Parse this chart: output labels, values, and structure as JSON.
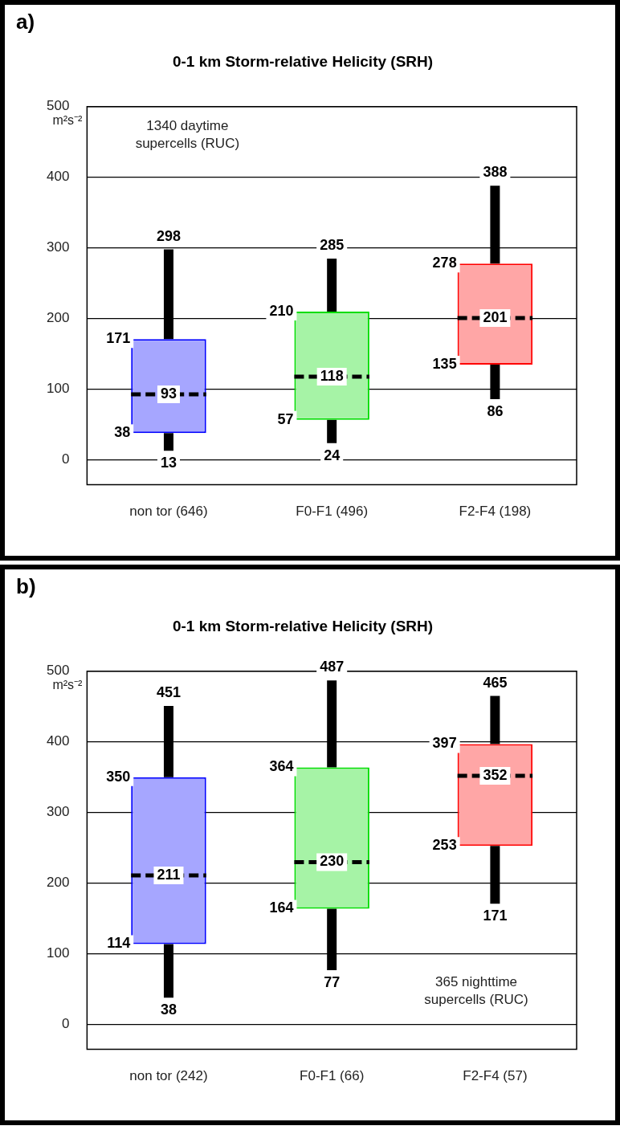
{
  "chart_data": [
    {
      "type": "box",
      "title": "0-1 km Storm-relative Helicity (SRH)",
      "ylabel": "m²s⁻²",
      "categories": [
        "non tor (646)",
        "F0-F1 (496)",
        "F2-F4 (198)"
      ],
      "colors": [
        "#0000ff",
        "#00dd00",
        "#ff0000"
      ],
      "boxes": [
        {
          "low": 13,
          "q1": 38,
          "median": 93,
          "q3": 171,
          "high": 298
        },
        {
          "low": 24,
          "q1": 57,
          "median": 118,
          "q3": 210,
          "high": 285
        },
        {
          "low": 86,
          "q1": 135,
          "median": 201,
          "q3": 278,
          "high": 388
        }
      ],
      "ylim": [
        -35,
        500
      ],
      "yticks": [
        0,
        100,
        200,
        300,
        400,
        500
      ],
      "grid": "y",
      "legend": false,
      "annotations": [
        "a)",
        "1340 daytime\nsupercells (RUC)",
        {
          "text": "298",
          "x": "non tor (646)",
          "y": 298
        },
        {
          "text": "171",
          "x": "non tor (646)",
          "y": 171
        },
        {
          "text": "93",
          "x": "non tor (646)",
          "y": 93
        },
        {
          "text": "38",
          "x": "non tor (646)",
          "y": 38
        },
        {
          "text": "13",
          "x": "non tor (646)",
          "y": 13
        },
        {
          "text": "285",
          "x": "F0-F1 (496)",
          "y": 285
        },
        {
          "text": "210",
          "x": "F0-F1 (496)",
          "y": 210
        },
        {
          "text": "118",
          "x": "F0-F1 (496)",
          "y": 118
        },
        {
          "text": "57",
          "x": "F0-F1 (496)",
          "y": 57
        },
        {
          "text": "24",
          "x": "F0-F1 (496)",
          "y": 24
        },
        {
          "text": "388",
          "x": "F2-F4 (198)",
          "y": 388
        },
        {
          "text": "278",
          "x": "F2-F4 (198)",
          "y": 278
        },
        {
          "text": "201",
          "x": "F2-F4 (198)",
          "y": 201
        },
        {
          "text": "135",
          "x": "F2-F4 (198)",
          "y": 135
        },
        {
          "text": "86",
          "x": "F2-F4 (198)",
          "y": 86
        }
      ]
    },
    {
      "type": "box",
      "title": "0-1 km Storm-relative Helicity (SRH)",
      "ylabel": "m²s⁻²",
      "categories": [
        "non tor (242)",
        "F0-F1 (66)",
        "F2-F4 (57)"
      ],
      "colors": [
        "#0000ff",
        "#00dd00",
        "#ff0000"
      ],
      "boxes": [
        {
          "low": 38,
          "q1": 114,
          "median": 211,
          "q3": 350,
          "high": 451
        },
        {
          "low": 77,
          "q1": 164,
          "median": 230,
          "q3": 364,
          "high": 487
        },
        {
          "low": 171,
          "q1": 253,
          "median": 352,
          "q3": 397,
          "high": 465
        }
      ],
      "ylim": [
        -35,
        500
      ],
      "yticks": [
        0,
        100,
        200,
        300,
        400,
        500
      ],
      "grid": "y",
      "legend": false,
      "annotations": [
        "b)",
        "365 nighttime\nsupercells (RUC)",
        {
          "text": "451",
          "x": "non tor (242)",
          "y": 451
        },
        {
          "text": "350",
          "x": "non tor (242)",
          "y": 350
        },
        {
          "text": "211",
          "x": "non tor (242)",
          "y": 211
        },
        {
          "text": "114",
          "x": "non tor (242)",
          "y": 114
        },
        {
          "text": "38",
          "x": "non tor (242)",
          "y": 38
        },
        {
          "text": "487",
          "x": "F0-F1 (66)",
          "y": 487
        },
        {
          "text": "364",
          "x": "F0-F1 (66)",
          "y": 364
        },
        {
          "text": "230",
          "x": "F0-F1 (66)",
          "y": 230
        },
        {
          "text": "164",
          "x": "F0-F1 (66)",
          "y": 164
        },
        {
          "text": "77",
          "x": "F0-F1 (66)",
          "y": 77
        },
        {
          "text": "465",
          "x": "F2-F4 (57)",
          "y": 465
        },
        {
          "text": "397",
          "x": "F2-F4 (57)",
          "y": 397
        },
        {
          "text": "352",
          "x": "F2-F4 (57)",
          "y": 352
        },
        {
          "text": "253",
          "x": "F2-F4 (57)",
          "y": 253
        },
        {
          "text": "171",
          "x": "F2-F4 (57)",
          "y": 171
        }
      ]
    }
  ]
}
